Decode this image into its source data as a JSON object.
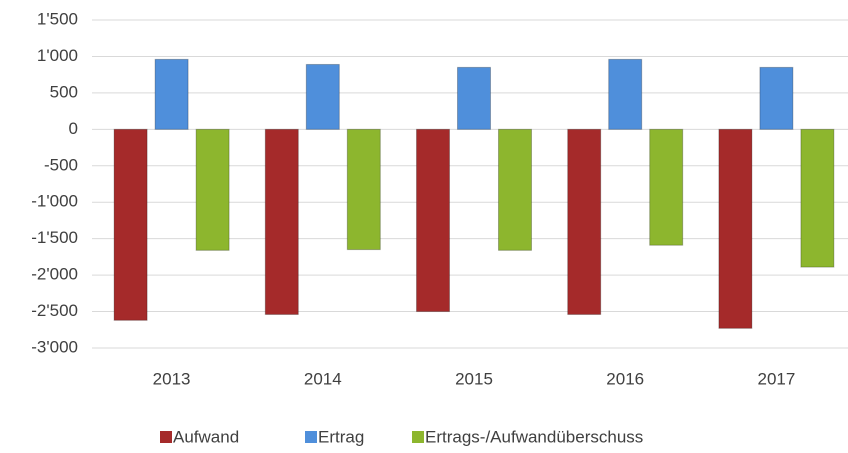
{
  "chart_data": {
    "type": "bar",
    "categories": [
      "2013",
      "2014",
      "2015",
      "2016",
      "2017"
    ],
    "series": [
      {
        "name": "Aufwand",
        "color": "#a52a2a",
        "values": [
          -2620,
          -2540,
          -2500,
          -2540,
          -2730
        ]
      },
      {
        "name": "Ertrag",
        "color": "#4f8fdb",
        "values": [
          960,
          890,
          850,
          960,
          850
        ]
      },
      {
        "name": "Ertrags-/Aufwandüberschuss",
        "color": "#8db62e",
        "values": [
          -1660,
          -1650,
          -1660,
          -1590,
          -1890
        ]
      }
    ],
    "ylim": [
      -3000,
      1500
    ],
    "yticks": [
      {
        "value": -3000,
        "label": "-3'000"
      },
      {
        "value": -2500,
        "label": "-2'500"
      },
      {
        "value": -2000,
        "label": "-2'000"
      },
      {
        "value": -1500,
        "label": "-1'500"
      },
      {
        "value": -1000,
        "label": "-1'000"
      },
      -500,
      0,
      500,
      {
        "value": 1000,
        "label": "1'000"
      },
      {
        "value": 1500,
        "label": "1'500"
      }
    ],
    "grid": true,
    "legend": "bottom"
  }
}
